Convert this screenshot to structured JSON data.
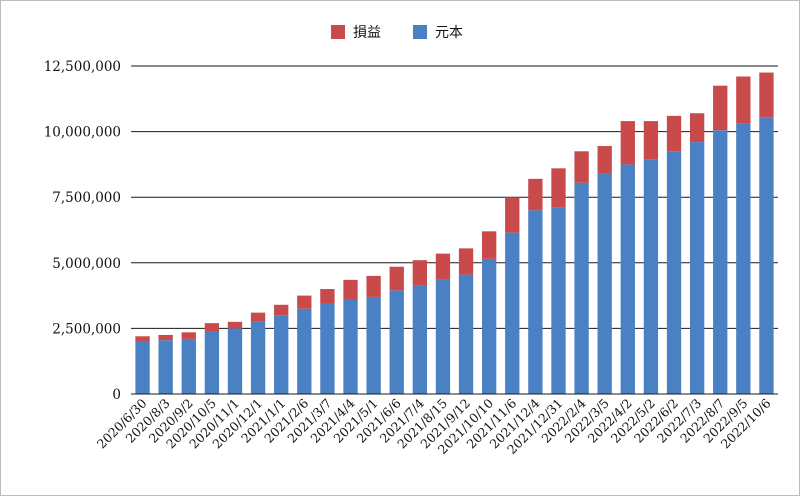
{
  "chart_data": {
    "type": "bar",
    "stacked": true,
    "title": "",
    "xlabel": "",
    "ylabel": "",
    "ylim": [
      0,
      12500000
    ],
    "yticks": [
      0,
      2500000,
      5000000,
      7500000,
      10000000,
      12500000
    ],
    "ytick_labels": [
      "0",
      "2,500,000",
      "5,000,000",
      "7,500,000",
      "10,000,000",
      "12,500,000"
    ],
    "grid": "horizontal",
    "legend": "top-center",
    "categories": [
      "2020/6/30",
      "2020/8/3",
      "2020/9/2",
      "2020/10/5",
      "2020/11/1",
      "2020/12/1",
      "2021/1/1",
      "2021/2/6",
      "2021/3/7",
      "2021/4/4",
      "2021/5/1",
      "2021/6/6",
      "2021/7/4",
      "2021/8/15",
      "2021/9/12",
      "2021/10/10",
      "2021/11/6",
      "2021/12/4",
      "2021/12/31",
      "2022/2/4",
      "2022/3/5",
      "2022/4/2",
      "2022/5/2",
      "2022/6/2",
      "2022/7/3",
      "2022/8/7",
      "2022/9/5",
      "2022/10/6"
    ],
    "series": [
      {
        "name": "元本",
        "color": "#4a80c4",
        "values": [
          2000000,
          2050000,
          2100000,
          2400000,
          2500000,
          2750000,
          3000000,
          3250000,
          3450000,
          3600000,
          3700000,
          3950000,
          4150000,
          4350000,
          4550000,
          5150000,
          6150000,
          7000000,
          7100000,
          8050000,
          8400000,
          8750000,
          8950000,
          9250000,
          9600000,
          10050000,
          10300000,
          10550000
        ]
      },
      {
        "name": "損益",
        "color": "#c94a4a",
        "values": [
          200000,
          200000,
          250000,
          300000,
          250000,
          350000,
          400000,
          500000,
          550000,
          750000,
          800000,
          900000,
          950000,
          1000000,
          1000000,
          1050000,
          1350000,
          1200000,
          1500000,
          1200000,
          1050000,
          1650000,
          1450000,
          1350000,
          1100000,
          1700000,
          1800000,
          1700000
        ]
      }
    ]
  }
}
